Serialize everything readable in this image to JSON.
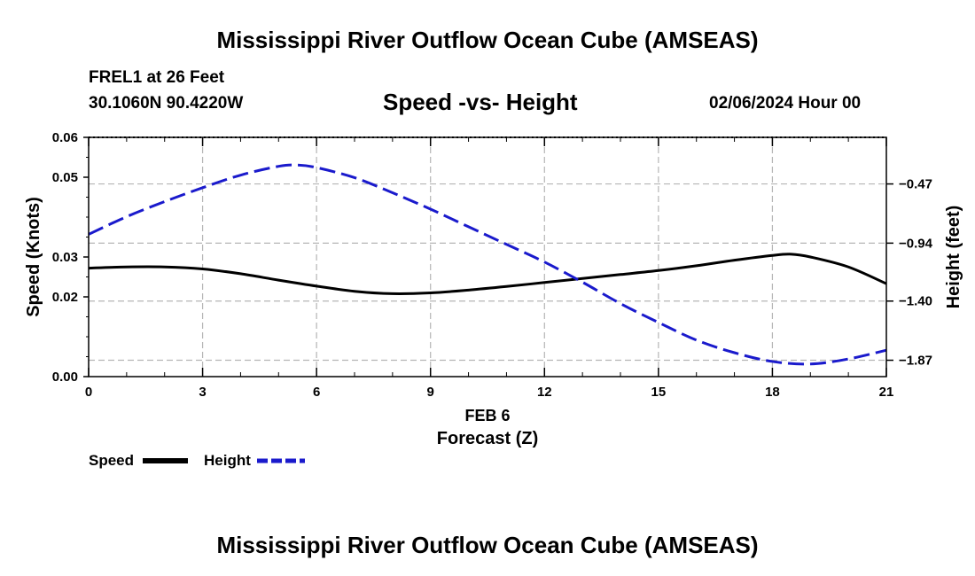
{
  "page": {
    "top_title": "Mississippi River Outflow Ocean Cube (AMSEAS)",
    "bottom_title": "Mississippi River Outflow Ocean Cube (AMSEAS)",
    "station": "FREL1 at 26 Feet",
    "coords": "30.1060N  90.4220W",
    "datetime": "02/06/2024 Hour 00"
  },
  "chart_data": {
    "type": "line",
    "title": "Speed -vs- Height",
    "xlabel": "Forecast (Z)",
    "x_sublabel": "FEB 6",
    "ylabel": "Speed (Knots)",
    "y2label": "Height (feet)",
    "xlim": [
      0,
      21
    ],
    "ylim": [
      0,
      0.06
    ],
    "y2lim": [
      -2.0,
      -0.1
    ],
    "x_ticks": [
      0,
      3,
      6,
      9,
      12,
      15,
      18,
      21
    ],
    "y_ticks": [
      0.0,
      0.02,
      0.03,
      0.05,
      0.06
    ],
    "y_tick_labels": [
      "0.00",
      "0.02",
      "0.03",
      "0.05",
      "0.06"
    ],
    "y2_ticks": [
      -0.47,
      -0.94,
      -1.4,
      -1.87
    ],
    "y2_tick_labels": [
      "−0.47",
      "−0.94",
      "−1.40",
      "−1.87"
    ],
    "grid": true,
    "series": [
      {
        "name": "Speed",
        "axis": "left",
        "color": "#000000",
        "dash": "solid",
        "x": [
          0,
          1,
          2,
          3,
          4,
          5,
          6,
          7,
          8,
          9,
          10,
          11,
          12,
          13,
          14,
          15,
          16,
          17,
          18,
          18.5,
          19,
          20,
          21
        ],
        "values": [
          0.0272,
          0.0275,
          0.0275,
          0.027,
          0.0258,
          0.0242,
          0.0227,
          0.0214,
          0.0208,
          0.021,
          0.0217,
          0.0226,
          0.0236,
          0.0246,
          0.0256,
          0.0266,
          0.0278,
          0.0292,
          0.0304,
          0.0307,
          0.03,
          0.0275,
          0.0233
        ]
      },
      {
        "name": "Height",
        "axis": "right",
        "color": "#1a1acc",
        "dash": "dashed",
        "x": [
          0,
          1,
          2,
          3,
          4,
          5,
          5.5,
          6,
          7,
          8,
          9,
          10,
          11,
          12,
          13,
          14,
          15,
          16,
          17,
          18,
          19,
          20,
          21
        ],
        "values": [
          -0.87,
          -0.73,
          -0.61,
          -0.5,
          -0.4,
          -0.33,
          -0.32,
          -0.34,
          -0.42,
          -0.54,
          -0.67,
          -0.81,
          -0.95,
          -1.09,
          -1.25,
          -1.42,
          -1.57,
          -1.71,
          -1.81,
          -1.88,
          -1.9,
          -1.86,
          -1.79
        ]
      }
    ],
    "legend": [
      {
        "label": "Speed",
        "color": "#000000",
        "dash": "solid"
      },
      {
        "label": "Height",
        "color": "#1a1acc",
        "dash": "dashed"
      }
    ]
  }
}
